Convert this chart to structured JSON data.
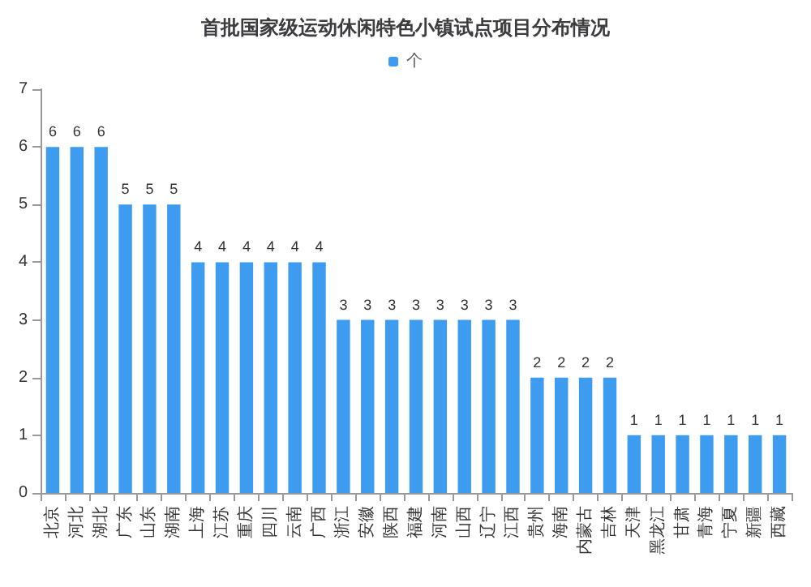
{
  "chart_data": {
    "type": "bar",
    "title": "首批国家级运动休闲特色小镇试点项目分布情况",
    "categories": [
      "北京",
      "河北",
      "湖北",
      "广东",
      "山东",
      "湖南",
      "上海",
      "江苏",
      "重庆",
      "四川",
      "云南",
      "广西",
      "浙江",
      "安徽",
      "陕西",
      "福建",
      "河南",
      "山西",
      "辽宁",
      "江西",
      "贵州",
      "海南",
      "内蒙古",
      "吉林",
      "天津",
      "黑龙江",
      "甘肃",
      "青海",
      "宁夏",
      "新疆",
      "西藏"
    ],
    "series": [
      {
        "name": "个",
        "color": "#3e9cf0",
        "values": [
          6,
          6,
          6,
          5,
          5,
          5,
          4,
          4,
          4,
          4,
          4,
          4,
          3,
          3,
          3,
          3,
          3,
          3,
          3,
          3,
          2,
          2,
          2,
          2,
          1,
          1,
          1,
          1,
          1,
          1,
          1
        ]
      }
    ],
    "ylim": [
      0,
      7
    ],
    "yticks": [
      0,
      1,
      2,
      3,
      4,
      5,
      6,
      7
    ],
    "grid": false,
    "legend": "top",
    "data_labels": true
  }
}
